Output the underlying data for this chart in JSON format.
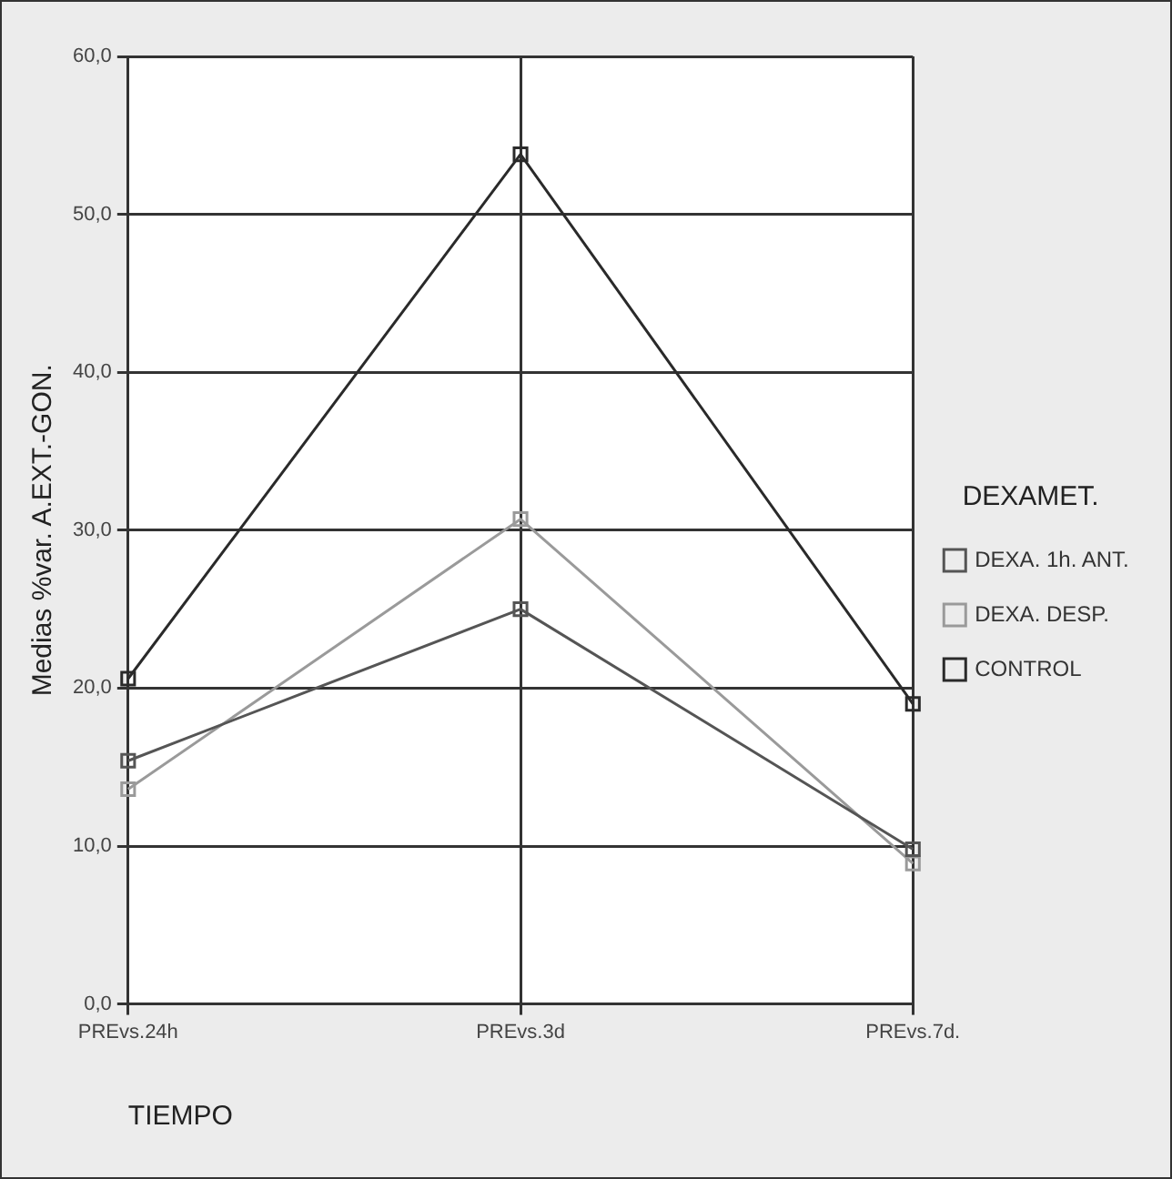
{
  "chart_data": {
    "type": "line",
    "xlabel": "TIEMPO",
    "ylabel": "Medias %var. A.EXT.-GON.",
    "legend_title": "DEXAMET.",
    "categories": [
      "PREvs.24h",
      "PREvs.3d",
      "PREvs.7d."
    ],
    "series": [
      {
        "name": "DEXA. 1h. ANT.",
        "color": "#555555",
        "values": [
          15.4,
          25.0,
          9.8
        ]
      },
      {
        "name": "DEXA. DESP.",
        "color": "#9a9a9a",
        "values": [
          13.6,
          30.7,
          8.9
        ]
      },
      {
        "name": "CONTROL",
        "color": "#2a2a2a",
        "values": [
          20.6,
          53.8,
          19.0
        ]
      }
    ],
    "ylim": [
      0,
      60
    ],
    "yticks": [
      {
        "value": 0,
        "label": "0,0"
      },
      {
        "value": 10,
        "label": "10,0"
      },
      {
        "value": 20,
        "label": "20,0"
      },
      {
        "value": 30,
        "label": "30,0"
      },
      {
        "value": 40,
        "label": "40,0"
      },
      {
        "value": 50,
        "label": "50,0"
      },
      {
        "value": 60,
        "label": "60,0"
      }
    ],
    "grid": true,
    "legend": "right",
    "marker": "square",
    "line_style": "solid"
  }
}
